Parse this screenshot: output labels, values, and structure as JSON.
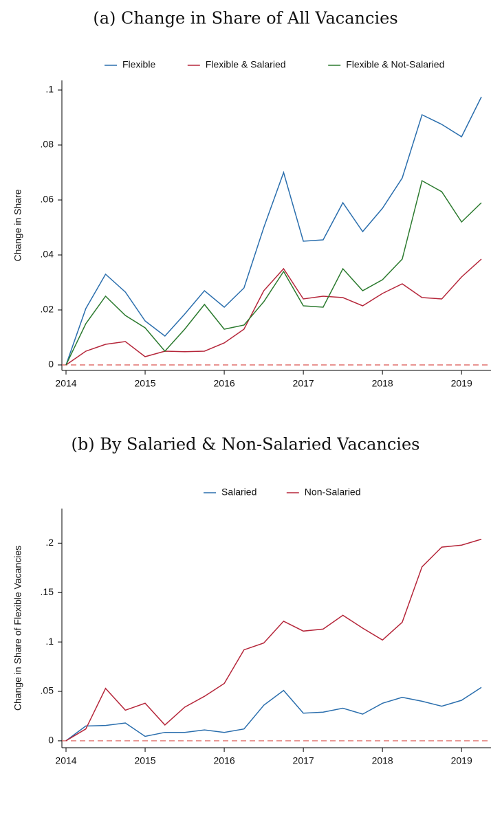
{
  "chart_data": [
    {
      "type": "line",
      "title": "(a) Change in Share of All Vacancies",
      "y_label": "Change in Share",
      "categories": [
        "2014",
        null,
        null,
        null,
        "2015",
        null,
        null,
        null,
        "2016",
        null,
        null,
        null,
        "2017",
        null,
        null,
        null,
        "2018",
        null,
        null,
        null,
        "2019",
        null
      ],
      "series": [
        {
          "name": "Flexible",
          "color": "#2a6ead",
          "values": [
            0,
            0.0205,
            0.033,
            0.0265,
            0.016,
            0.0105,
            0.0185,
            0.027,
            0.021,
            0.028,
            0.05,
            0.07,
            0.045,
            0.0455,
            0.059,
            0.0485,
            0.057,
            0.068,
            0.091,
            0.0875,
            0.083,
            0.0975
          ]
        },
        {
          "name": "Flexible & Salaried",
          "color": "#b5263a",
          "values": [
            0,
            0.005,
            0.0075,
            0.0085,
            0.003,
            0.005,
            0.0048,
            0.005,
            0.008,
            0.013,
            0.027,
            0.035,
            0.024,
            0.025,
            0.0245,
            0.0215,
            0.026,
            0.0295,
            0.0245,
            0.024,
            0.032,
            0.0385
          ]
        },
        {
          "name": "Flexible & Not-Salaried",
          "color": "#2b7a2e",
          "values": [
            0,
            0.015,
            0.025,
            0.018,
            0.0135,
            0.005,
            0.013,
            0.022,
            0.013,
            0.0145,
            0.023,
            0.034,
            0.0215,
            0.021,
            0.035,
            0.027,
            0.031,
            0.0385,
            0.067,
            0.063,
            0.052,
            0.059
          ]
        }
      ],
      "ylim": [
        -0.002,
        0.1035
      ],
      "yticks": [
        0,
        {
          "value": 0.02,
          "label": ".02"
        },
        {
          "value": 0.04,
          "label": ".04"
        },
        {
          "value": 0.06,
          "label": ".06"
        },
        {
          "value": 0.08,
          "label": ".08"
        },
        {
          "value": 0.1,
          "label": ".1"
        }
      ],
      "reference_line": {
        "value": 0,
        "color": "#d9534f"
      },
      "legend": "top"
    },
    {
      "type": "line",
      "title": "(b) By Salaried & Non-Salaried Vacancies",
      "y_label": "Change in Share of Flexible Vacancies",
      "categories": [
        "2014",
        null,
        null,
        null,
        "2015",
        null,
        null,
        null,
        "2016",
        null,
        null,
        null,
        "2017",
        null,
        null,
        null,
        "2018",
        null,
        null,
        null,
        "2019",
        null
      ],
      "series": [
        {
          "name": "Salaried",
          "color": "#2a6ead",
          "values": [
            0,
            0.015,
            0.0155,
            0.018,
            0.0045,
            0.0085,
            0.0085,
            0.011,
            0.0085,
            0.012,
            0.036,
            0.051,
            0.028,
            0.029,
            0.033,
            0.027,
            0.038,
            0.044,
            0.04,
            0.035,
            0.041,
            0.054
          ]
        },
        {
          "name": "Non-Salaried",
          "color": "#b5263a",
          "values": [
            0,
            0.012,
            0.053,
            0.031,
            0.038,
            0.016,
            0.034,
            0.045,
            0.058,
            0.092,
            0.099,
            0.121,
            0.111,
            0.113,
            0.127,
            0.114,
            0.102,
            0.12,
            0.176,
            0.196,
            0.198,
            0.204
          ]
        }
      ],
      "ylim": [
        -0.007,
        0.235
      ],
      "yticks": [
        0,
        {
          "value": 0.05,
          "label": ".05"
        },
        {
          "value": 0.1,
          "label": ".1"
        },
        {
          "value": 0.15,
          "label": ".15"
        },
        {
          "value": 0.2,
          "label": ".2"
        }
      ],
      "reference_line": {
        "value": 0,
        "color": "#d9534f"
      },
      "legend": "top"
    }
  ]
}
